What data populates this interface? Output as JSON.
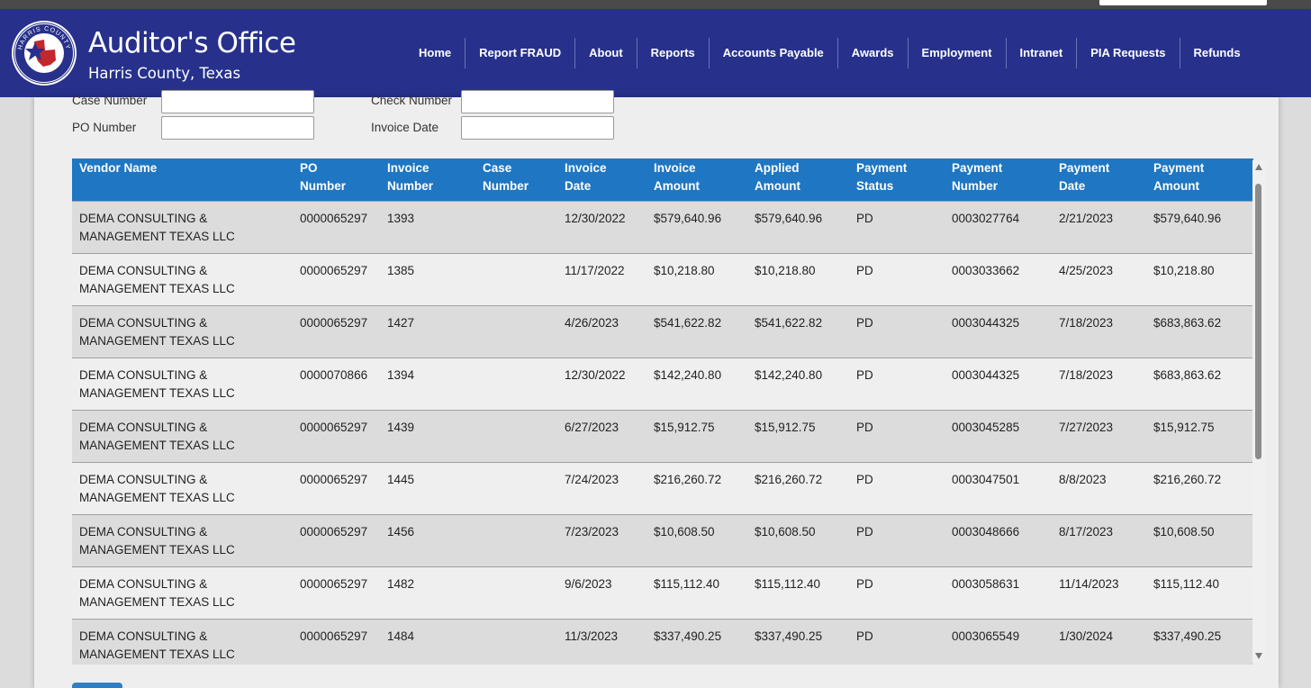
{
  "app": {
    "title": "Auditor's Office",
    "subtitle": "Harris County, Texas",
    "seal_text": {
      "top": "HARRIS COUNTY",
      "bottom": "TEXAS"
    }
  },
  "nav": {
    "items": [
      "Home",
      "Report FRAUD",
      "About",
      "Reports",
      "Accounts Payable",
      "Awards",
      "Employment",
      "Intranet",
      "PIA Requests",
      "Refunds"
    ]
  },
  "filters": {
    "case_number_label": "Case Number",
    "check_number_label": "Check Number",
    "po_number_label": "PO Number",
    "invoice_date_label": "Invoice Date",
    "case_number_value": "",
    "check_number_value": "",
    "po_number_value": "",
    "invoice_date_value": ""
  },
  "table": {
    "columns": [
      [
        "Vendor Name",
        ""
      ],
      [
        "PO",
        "Number"
      ],
      [
        "Invoice",
        "Number"
      ],
      [
        "Case",
        "Number"
      ],
      [
        "Invoice",
        "Date"
      ],
      [
        "Invoice",
        "Amount"
      ],
      [
        "Applied",
        "Amount"
      ],
      [
        "Payment",
        "Status"
      ],
      [
        "Payment",
        "Number"
      ],
      [
        "Payment",
        "Date"
      ],
      [
        "Payment",
        "Amount"
      ]
    ],
    "rows": [
      [
        [
          "DEMA CONSULTING &",
          "MANAGEMENT TEXAS LLC"
        ],
        "0000065297",
        "1393",
        "",
        "12/30/2022",
        "$579,640.96",
        "$579,640.96",
        "PD",
        "0003027764",
        "2/21/2023",
        "$579,640.96"
      ],
      [
        [
          "DEMA CONSULTING &",
          "MANAGEMENT TEXAS LLC"
        ],
        "0000065297",
        "1385",
        "",
        "11/17/2022",
        "$10,218.80",
        "$10,218.80",
        "PD",
        "0003033662",
        "4/25/2023",
        "$10,218.80"
      ],
      [
        [
          "DEMA CONSULTING &",
          "MANAGEMENT TEXAS LLC"
        ],
        "0000065297",
        "1427",
        "",
        "4/26/2023",
        "$541,622.82",
        "$541,622.82",
        "PD",
        "0003044325",
        "7/18/2023",
        "$683,863.62"
      ],
      [
        [
          "DEMA CONSULTING &",
          "MANAGEMENT TEXAS LLC"
        ],
        "0000070866",
        "1394",
        "",
        "12/30/2022",
        "$142,240.80",
        "$142,240.80",
        "PD",
        "0003044325",
        "7/18/2023",
        "$683,863.62"
      ],
      [
        [
          "DEMA CONSULTING &",
          "MANAGEMENT TEXAS LLC"
        ],
        "0000065297",
        "1439",
        "",
        "6/27/2023",
        "$15,912.75",
        "$15,912.75",
        "PD",
        "0003045285",
        "7/27/2023",
        "$15,912.75"
      ],
      [
        [
          "DEMA CONSULTING &",
          "MANAGEMENT TEXAS LLC"
        ],
        "0000065297",
        "1445",
        "",
        "7/24/2023",
        "$216,260.72",
        "$216,260.72",
        "PD",
        "0003047501",
        "8/8/2023",
        "$216,260.72"
      ],
      [
        [
          "DEMA CONSULTING &",
          "MANAGEMENT TEXAS LLC"
        ],
        "0000065297",
        "1456",
        "",
        "7/23/2023",
        "$10,608.50",
        "$10,608.50",
        "PD",
        "0003048666",
        "8/17/2023",
        "$10,608.50"
      ],
      [
        [
          "DEMA CONSULTING &",
          "MANAGEMENT TEXAS LLC"
        ],
        "0000065297",
        "1482",
        "",
        "9/6/2023",
        "$115,112.40",
        "$115,112.40",
        "PD",
        "0003058631",
        "11/14/2023",
        "$115,112.40"
      ],
      [
        [
          "DEMA CONSULTING &",
          "MANAGEMENT TEXAS LLC"
        ],
        "0000065297",
        "1484",
        "",
        "11/3/2023",
        "$337,490.25",
        "$337,490.25",
        "PD",
        "0003065549",
        "1/30/2024",
        "$337,490.25"
      ]
    ]
  },
  "icons": {
    "seal": "harris-county-seal-icon",
    "scroll_up": "scroll-up-arrow-icon",
    "scroll_down": "scroll-down-arrow-icon"
  },
  "colors": {
    "header_bg": "#27318b",
    "table_header_bg": "#1f76c2",
    "row_alt_bg": "#dcdcdc"
  }
}
